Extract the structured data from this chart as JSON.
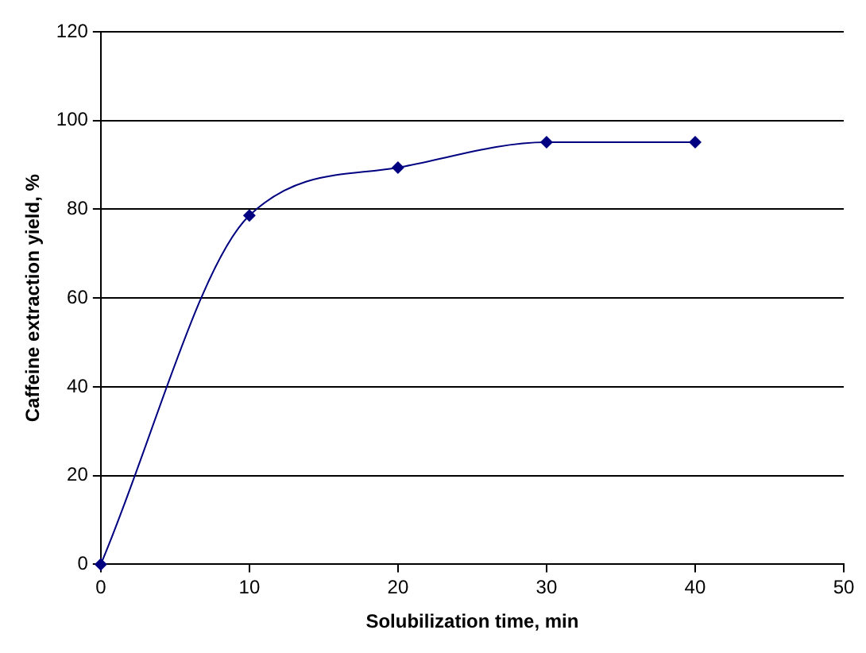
{
  "chart_data": {
    "type": "line",
    "xlabel": "Solubilization time, min",
    "ylabel": "Caffeine extraction yield, %",
    "x": [
      0,
      10,
      20,
      30,
      40
    ],
    "series": [
      {
        "color": "#000080",
        "values": [
          0,
          78.6,
          89.4,
          95.1,
          95.1
        ]
      }
    ],
    "xlim": [
      0,
      50
    ],
    "xticks": [
      0,
      10,
      20,
      30,
      40,
      50
    ],
    "ylim": [
      0,
      120
    ],
    "yticks": [
      0,
      20,
      40,
      60,
      80,
      100,
      120
    ],
    "grid": "y",
    "legend": false,
    "marker": "diamond",
    "line_style": "solid"
  }
}
